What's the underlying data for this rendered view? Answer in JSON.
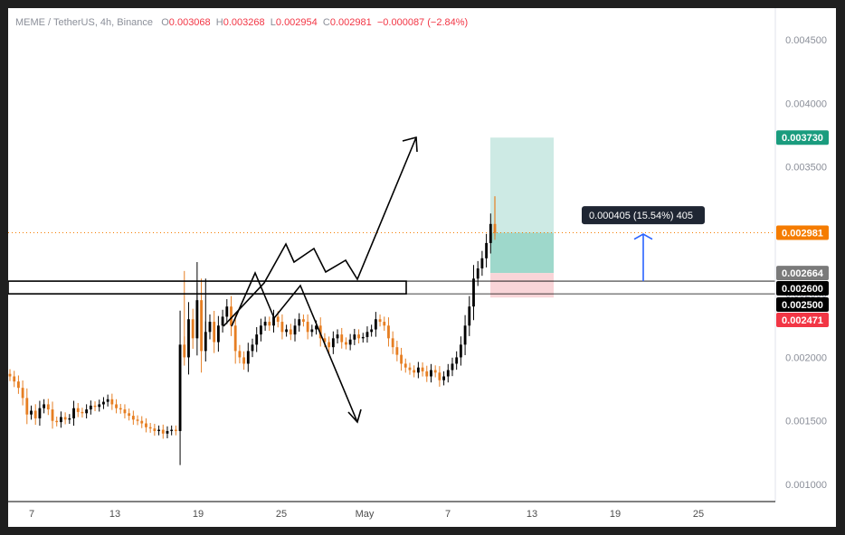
{
  "header": {
    "symbol": "MEME / TetherUS, 4h, Binance",
    "open_label": "O",
    "open": "0.003068",
    "high_label": "H",
    "high": "0.003268",
    "low_label": "L",
    "low": "0.002954",
    "close_label": "C",
    "close": "0.002981",
    "change": "−0.000087 (−2.84%)"
  },
  "colors": {
    "up": "#000000",
    "down": "#e67e22",
    "target_fill": "#cdeae4",
    "profit_fill": "#9ed8cb",
    "stop_fill": "#f9d5d8",
    "target_tag": "#1a9c7e",
    "last_tag": "#f57c00",
    "entry_tag": "#7a7a7a",
    "level_tag": "#000000",
    "stop_tag": "#f23645",
    "arrow_blue": "#2962ff"
  },
  "chart_data": {
    "type": "candlestick",
    "y_scale": "linear",
    "ylim": [
      0.00095,
      0.00475
    ],
    "y_ticks": [
      "0.001000",
      "0.001500",
      "0.002000",
      "0.002500",
      "0.003000",
      "0.003500",
      "0.004000",
      "0.004500"
    ],
    "x_ticks": [
      "7",
      "13",
      "19",
      "25",
      "May",
      "7",
      "13",
      "19",
      "25"
    ],
    "last_price": 0.002981,
    "price_tags": [
      {
        "label": "0.003730",
        "value": 0.00373,
        "role": "target"
      },
      {
        "label": "0.002981",
        "value": 0.002981,
        "role": "last"
      },
      {
        "label": "0.002664",
        "value": 0.002664,
        "role": "entry"
      },
      {
        "label": "0.002600",
        "value": 0.0026,
        "role": "level"
      },
      {
        "label": "0.002500",
        "value": 0.0025,
        "role": "level"
      },
      {
        "label": "0.002471",
        "value": 0.002471,
        "role": "stop"
      }
    ],
    "zone": {
      "top": 0.0026,
      "bottom": 0.0025
    },
    "position": {
      "entry": 0.002664,
      "target": 0.00373,
      "stop": 0.002471,
      "current": 0.002981
    },
    "measure_label": "0.000405 (15.54%) 405",
    "closes": [
      0.00185,
      0.00181,
      0.00176,
      0.00168,
      0.00155,
      0.00158,
      0.00152,
      0.0016,
      0.00163,
      0.00159,
      0.0015,
      0.00149,
      0.00153,
      0.00151,
      0.00152,
      0.0016,
      0.00157,
      0.00156,
      0.00159,
      0.00162,
      0.00161,
      0.00163,
      0.00165,
      0.00167,
      0.00163,
      0.0016,
      0.00159,
      0.00156,
      0.00154,
      0.00151,
      0.0015,
      0.00148,
      0.00145,
      0.00144,
      0.00142,
      0.00143,
      0.0014,
      0.00142,
      0.00143,
      0.00142,
      0.0021,
      0.002,
      0.0023,
      0.00215,
      0.00245,
      0.00205,
      0.0022,
      0.00228,
      0.00212,
      0.00225,
      0.00232,
      0.0024,
      0.00225,
      0.00205,
      0.002,
      0.00195,
      0.00205,
      0.0021,
      0.00218,
      0.00225,
      0.00228,
      0.00225,
      0.00232,
      0.00228,
      0.0022,
      0.00222,
      0.00218,
      0.00225,
      0.0023,
      0.00228,
      0.0022,
      0.00222,
      0.00225,
      0.00215,
      0.00212,
      0.00208,
      0.00215,
      0.00218,
      0.00212,
      0.0021,
      0.00214,
      0.00218,
      0.00215,
      0.00216,
      0.0022,
      0.00222,
      0.0023,
      0.00228,
      0.00225,
      0.00215,
      0.00208,
      0.00202,
      0.00195,
      0.00192,
      0.0019,
      0.00188,
      0.00192,
      0.00189,
      0.00185,
      0.0019,
      0.00188,
      0.00182,
      0.00185,
      0.0019,
      0.00195,
      0.002,
      0.0021,
      0.00225,
      0.0024,
      0.00262,
      0.0027,
      0.00278,
      0.0029,
      0.00305,
      0.00298
    ]
  }
}
